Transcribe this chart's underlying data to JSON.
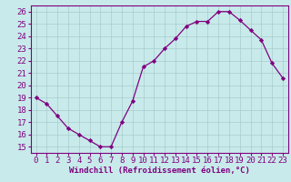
{
  "x": [
    0,
    1,
    2,
    3,
    4,
    5,
    6,
    7,
    8,
    9,
    10,
    11,
    12,
    13,
    14,
    15,
    16,
    17,
    18,
    19,
    20,
    21,
    22,
    23
  ],
  "y": [
    19,
    18.5,
    17.5,
    16.5,
    16,
    15.5,
    15,
    15,
    17,
    18.7,
    21.5,
    22,
    23,
    23.8,
    24.8,
    25.2,
    25.2,
    26,
    26,
    25.3,
    24.5,
    23.7,
    21.8,
    20.6
  ],
  "line_color": "#800080",
  "marker": "D",
  "marker_size": 2.2,
  "bg_color": "#c8eaea",
  "grid_color": "#a8cccc",
  "xlabel": "Windchill (Refroidissement éolien,°C)",
  "ylim": [
    14.5,
    26.5
  ],
  "xlim": [
    -0.5,
    23.5
  ],
  "yticks": [
    15,
    16,
    17,
    18,
    19,
    20,
    21,
    22,
    23,
    24,
    25,
    26
  ],
  "xticks": [
    0,
    1,
    2,
    3,
    4,
    5,
    6,
    7,
    8,
    9,
    10,
    11,
    12,
    13,
    14,
    15,
    16,
    17,
    18,
    19,
    20,
    21,
    22,
    23
  ],
  "tick_fontsize": 6.5,
  "xlabel_fontsize": 6.5
}
